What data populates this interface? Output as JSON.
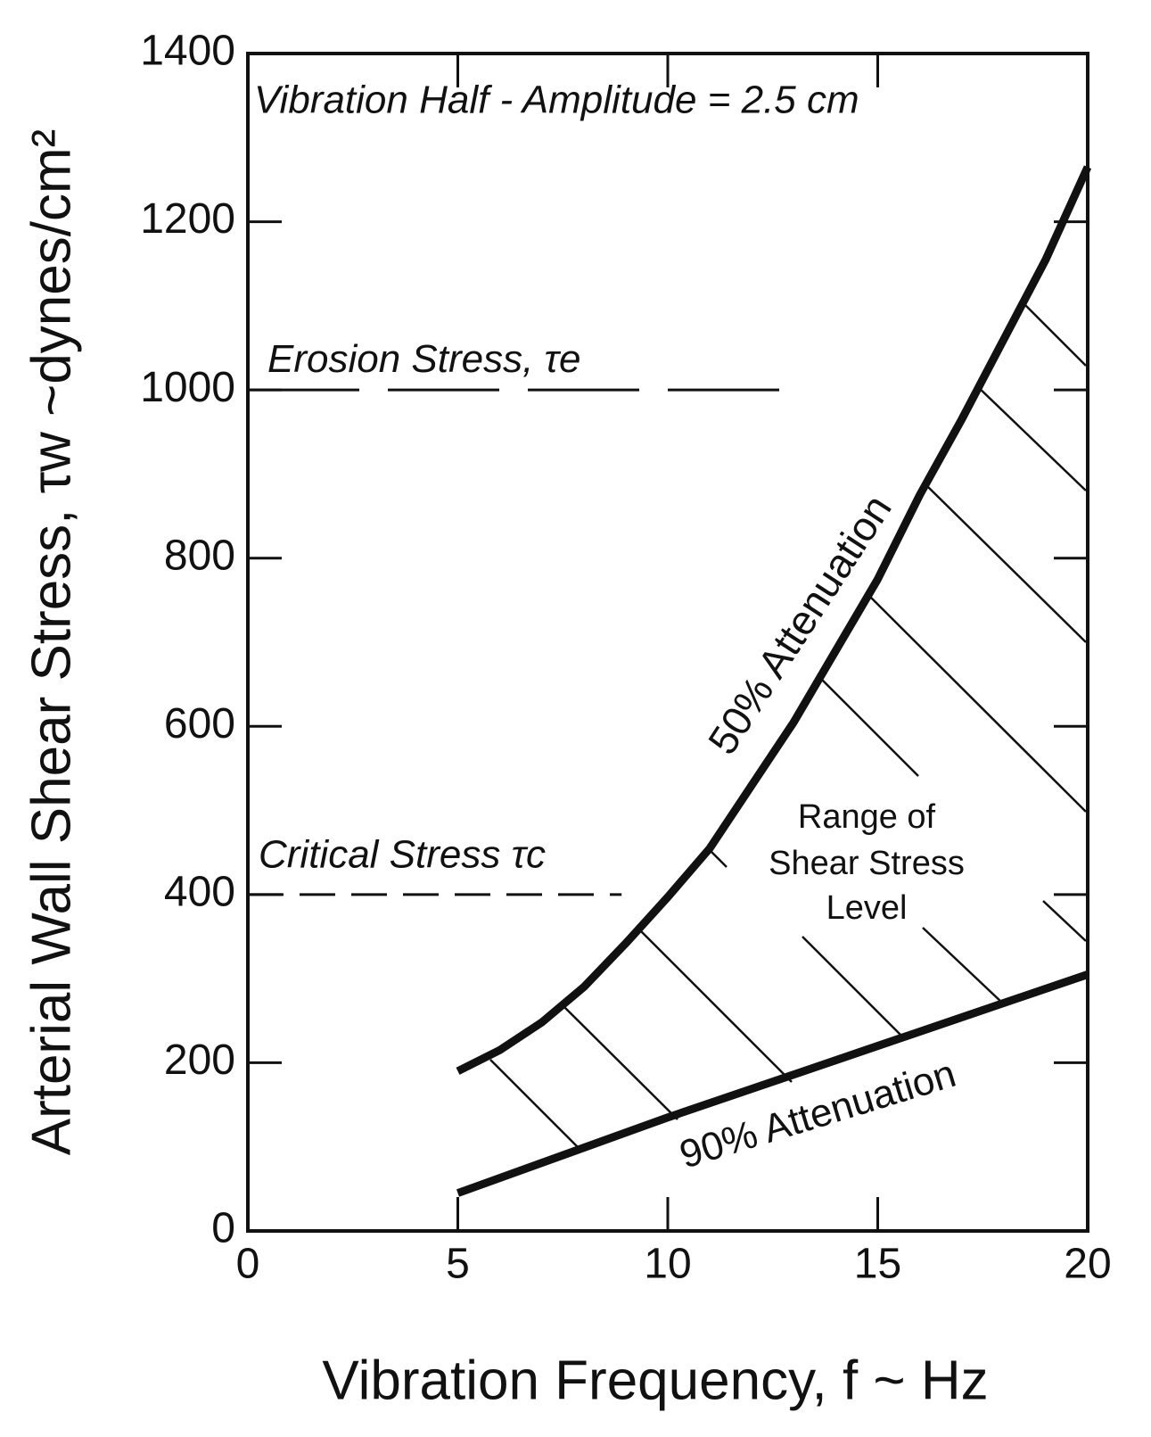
{
  "chart_data": {
    "type": "line",
    "x_label": "Vibration Frequency, f ~ Hz",
    "y_label": "Arterial Wall Shear Stress, τw ~dynes/cm²",
    "annotation": "Vibration Half - Amplitude = 2.5 cm",
    "region_label": [
      "Range of",
      "Shear Stress",
      "Level"
    ],
    "xlim": [
      0,
      20
    ],
    "ylim": [
      0,
      1400
    ],
    "xticks": [
      0,
      5,
      10,
      15,
      20
    ],
    "yticks": [
      0,
      200,
      400,
      600,
      800,
      1000,
      1200,
      1400
    ],
    "reference_lines": [
      {
        "label": "Erosion Stress, τe",
        "y": 1000,
        "x_end": 13,
        "style": "dashed"
      },
      {
        "label": "Critical Stress τc",
        "y": 400,
        "x_end": 8.9,
        "style": "dashed"
      }
    ],
    "series": [
      {
        "name": "50% Attenuation",
        "color": "#111111",
        "x": [
          5,
          6,
          7,
          8,
          9,
          10,
          11,
          12,
          13,
          14,
          15,
          16,
          17,
          18,
          19,
          20
        ],
        "values": [
          190,
          215,
          248,
          290,
          342,
          397,
          455,
          530,
          605,
          690,
          775,
          875,
          965,
          1060,
          1155,
          1265
        ]
      },
      {
        "name": "90% Attenuation",
        "color": "#111111",
        "x": [
          5,
          10,
          15,
          20
        ],
        "values": [
          45,
          135,
          220,
          305
        ]
      }
    ]
  }
}
